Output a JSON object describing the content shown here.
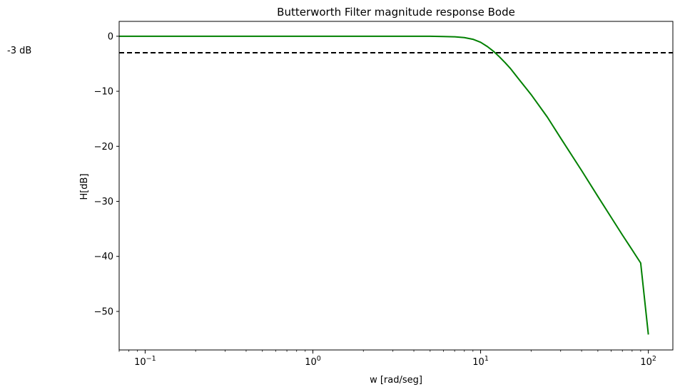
{
  "chart_data": {
    "type": "line",
    "title": "Butterworth Filter magnitude response Bode",
    "xlabel": "w [rad/seg]",
    "ylabel": "H[dB]",
    "xscale": "log",
    "xlim": [
      0.07,
      140
    ],
    "ylim": [
      -57,
      2.7
    ],
    "x_ticks": [
      {
        "value": 0.1,
        "base": "10",
        "exp": "−1"
      },
      {
        "value": 1,
        "base": "10",
        "exp": "0"
      },
      {
        "value": 10,
        "base": "10",
        "exp": "1"
      },
      {
        "value": 100,
        "base": "10",
        "exp": "2"
      }
    ],
    "y_ticks": [
      {
        "value": 0,
        "label": "0"
      },
      {
        "value": -10,
        "label": "−10"
      },
      {
        "value": -20,
        "label": "−20"
      },
      {
        "value": -30,
        "label": "−30"
      },
      {
        "value": -40,
        "label": "−40"
      },
      {
        "value": -50,
        "label": "−50"
      }
    ],
    "grid": false,
    "series": [
      {
        "color": "#008000",
        "x": [
          0.07,
          0.1,
          0.2,
          0.5,
          1,
          2,
          3,
          4,
          5,
          6,
          7,
          8,
          9,
          10,
          11,
          12,
          12.5,
          13,
          14,
          15,
          17,
          20,
          25,
          30,
          40,
          50,
          60,
          70,
          80,
          90,
          100
        ],
        "y": [
          0,
          0,
          0,
          0,
          0,
          0,
          0,
          0,
          0,
          -0.05,
          -0.1,
          -0.25,
          -0.55,
          -1.1,
          -1.9,
          -2.8,
          -3.3,
          -3.8,
          -4.8,
          -5.8,
          -7.9,
          -10.6,
          -14.7,
          -18.5,
          -24.4,
          -29.1,
          -32.9,
          -36.1,
          -38.8,
          -41.2,
          -54.2
        ]
      }
    ],
    "hline": {
      "y": -3,
      "color": "#000000",
      "style": "dashed"
    },
    "annotation": {
      "text": "-3 dB",
      "y": -3
    }
  }
}
